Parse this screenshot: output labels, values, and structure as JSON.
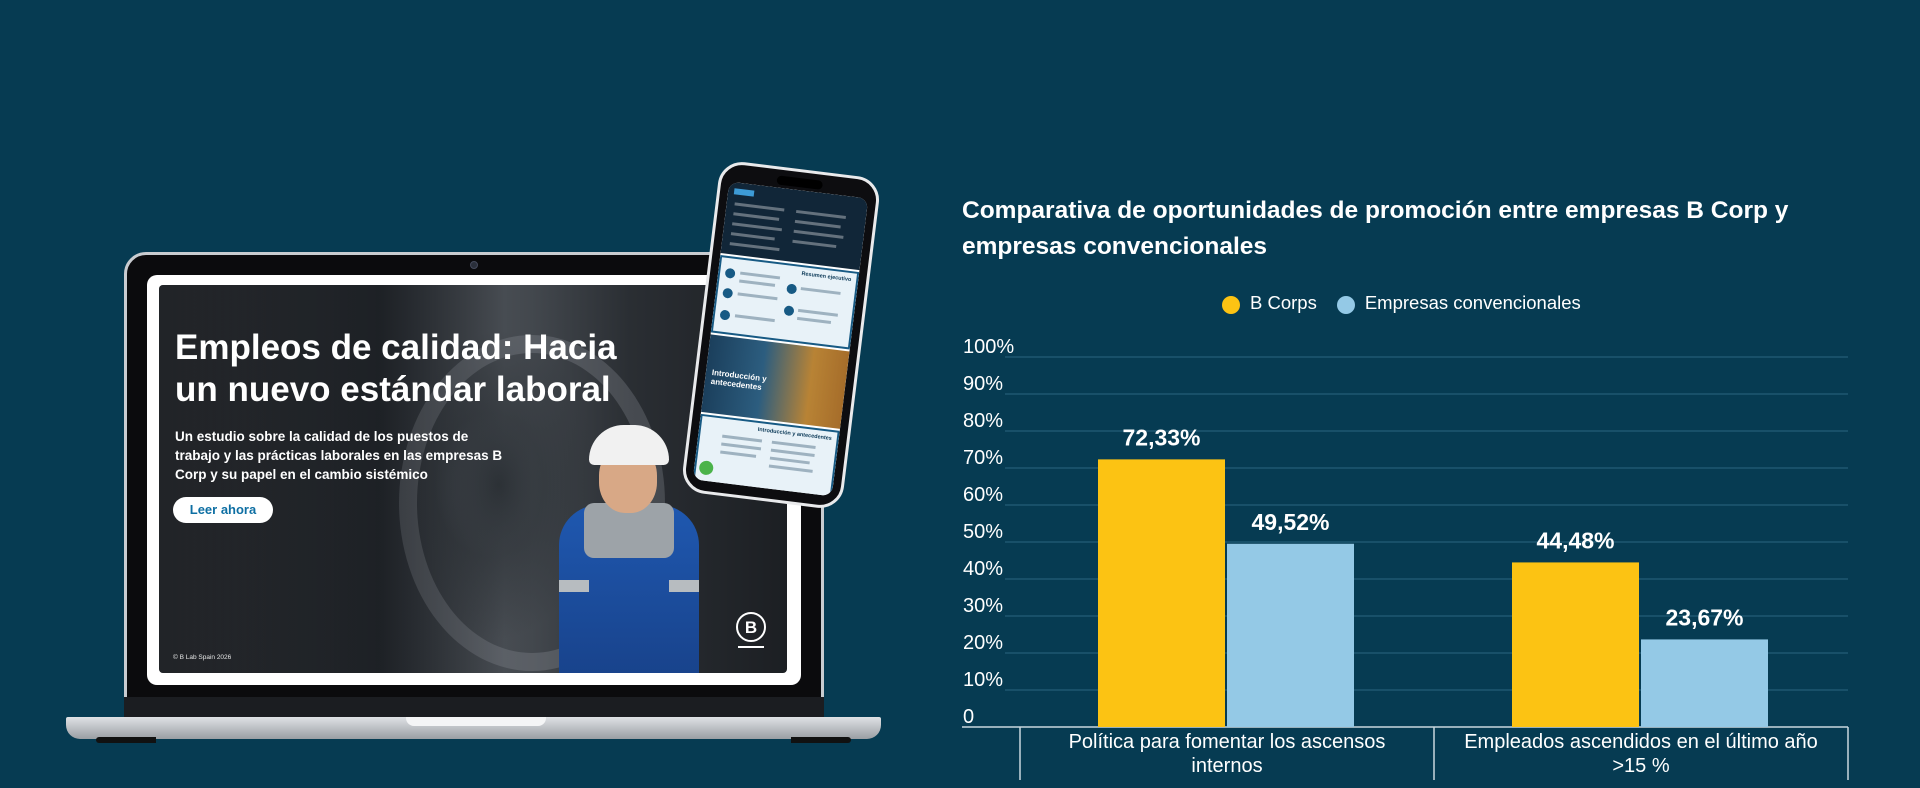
{
  "laptop": {
    "hero_title": "Empleos de calidad: Hacia un nuevo estándar laboral",
    "hero_subtitle": "Un estudio sobre la calidad de los puestos de trabajo y las prácticas laborales en las empresas B Corp y su papel en el cambio sistémico",
    "button_label": "Leer ahora",
    "copyright": "© B Lab Spain 2026",
    "logo_letter": "B"
  },
  "phone": {
    "card3_title": "Introducción y antecedentes",
    "card2_heading": "Resumen ejecutivo",
    "card4_heading": "Introducción y antecedentes"
  },
  "colors": {
    "background": "#063b52",
    "b_corps": "#fcc313",
    "convencionales": "#94c9e6",
    "text": "#ffffff"
  },
  "chart_data": {
    "type": "bar",
    "title": "Comparativa de oportunidades de promoción entre empresas B Corp y empresas convencionales",
    "categories": [
      [
        "Política para fomentar los ascensos",
        "internos"
      ],
      [
        "Empleados ascendidos en el último año",
        ">15 %"
      ]
    ],
    "series": [
      {
        "name": "B Corps",
        "values": [
          72.33,
          44.48
        ],
        "labels": [
          "72,33%",
          "44,48%"
        ]
      },
      {
        "name": "Empresas convencionales",
        "values": [
          49.52,
          23.67
        ],
        "labels": [
          "49,52%",
          "23,67%"
        ]
      }
    ],
    "y_ticks": [
      "0",
      "10%",
      "20%",
      "30%",
      "40%",
      "50%",
      "60%",
      "70%",
      "80%",
      "90%",
      "100%"
    ],
    "ylim": [
      0,
      100
    ],
    "grid": true,
    "legend_position": "top-center"
  }
}
